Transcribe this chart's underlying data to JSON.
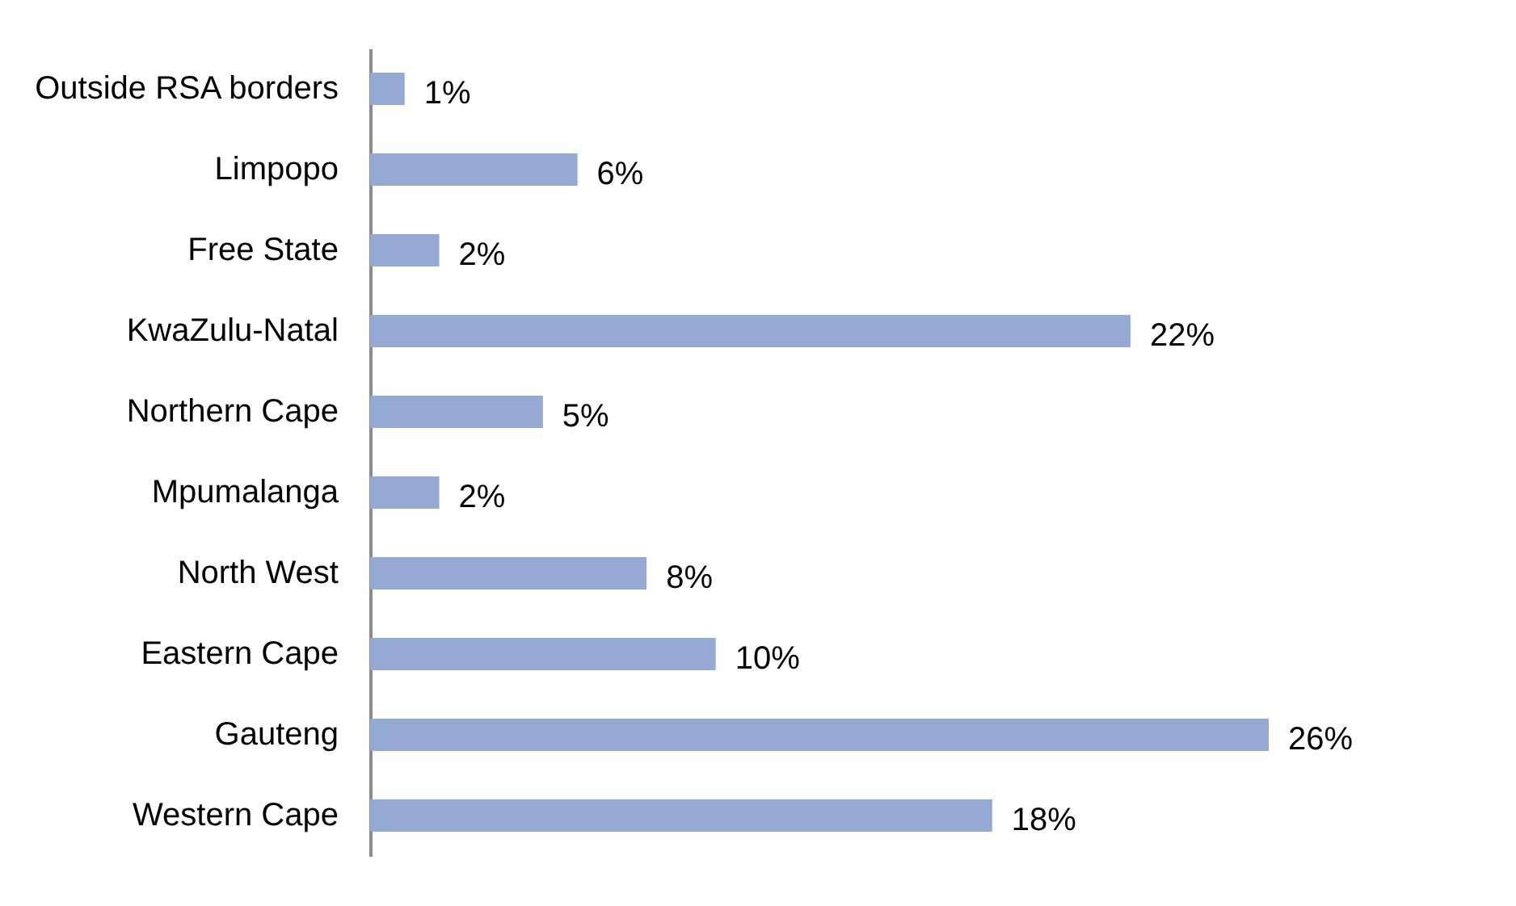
{
  "chart_data": {
    "type": "bar",
    "orientation": "horizontal",
    "categories": [
      "Outside RSA borders",
      "Limpopo",
      "Free State",
      "KwaZulu-Natal",
      "Northern Cape",
      "Mpumalanga",
      "North West",
      "Eastern Cape",
      "Gauteng",
      "Western Cape"
    ],
    "values": [
      1,
      6,
      2,
      22,
      5,
      2,
      8,
      10,
      26,
      18
    ],
    "value_labels": [
      "1%",
      "6%",
      "2%",
      "22%",
      "5%",
      "2%",
      "8%",
      "10%",
      "26%",
      "18%"
    ],
    "color": "#95aad3"
  }
}
